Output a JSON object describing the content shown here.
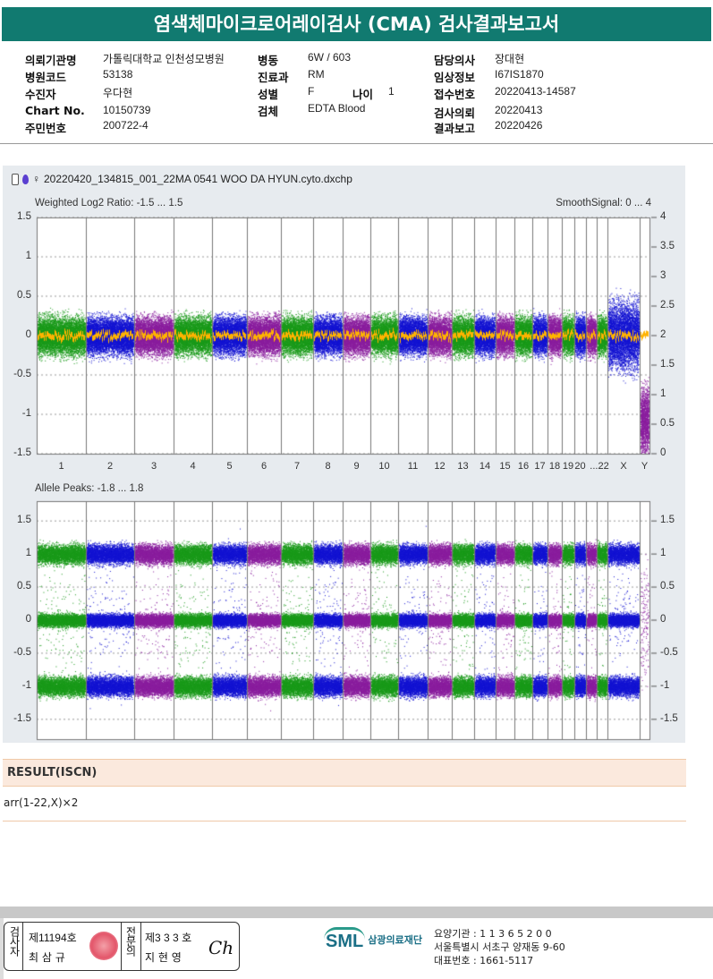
{
  "title": "염색체마이크로어레이검사 (CMA) 검사결과보고서",
  "info": [
    {
      "label": "의뢰기관명",
      "value": "가톨릭대학교 인천성모병원"
    },
    {
      "label": "병원코드",
      "value": "53138"
    },
    {
      "label": "수진자",
      "value": "우다현"
    },
    {
      "label": "Chart No.",
      "value": "10150739"
    },
    {
      "label": "주민번호",
      "value": "200722-4"
    },
    {
      "label": "병동",
      "value": "6W / 603"
    },
    {
      "label": "진료과",
      "value": "RM"
    },
    {
      "label": "성별",
      "value": "F"
    },
    {
      "label": "검체",
      "value": "EDTA Blood"
    },
    {
      "label": "나이",
      "value": "1"
    },
    {
      "label": "담당의사",
      "value": "장대현"
    },
    {
      "label": "임상정보",
      "value": "I67IS1870"
    },
    {
      "label": "접수번호",
      "value": "20220413-14587"
    },
    {
      "label": "검사의뢰",
      "value": "20220413"
    },
    {
      "label": "결과보고",
      "value": "20220426"
    }
  ],
  "plot": {
    "filename": "20220420_134815_001_22MA 0541 WOO DA HYUN.cyto.dxchp",
    "female_symbol": "♀"
  },
  "chart_data": [
    {
      "type": "scatter",
      "title": "Weighted Log2 Ratio: -1.5 ... 1.5",
      "right_title": "SmoothSignal: 0 ... 4",
      "ylim": [
        -1.5,
        1.5
      ],
      "y2lim": [
        0,
        4
      ],
      "yticks": [
        "1.5",
        "1",
        "0.5",
        "0",
        "-0.5",
        "-1",
        "-1.5"
      ],
      "y2ticks": [
        "4",
        "3.5",
        "3",
        "2.5",
        "2",
        "1.5",
        "1",
        "0.5",
        "0"
      ],
      "categories": [
        "1",
        "2",
        "3",
        "4",
        "5",
        "6",
        "7",
        "8",
        "9",
        "10",
        "11",
        "12",
        "13",
        "14",
        "15",
        "16",
        "17",
        "18",
        "19",
        "20",
        "...22",
        "X",
        "Y"
      ],
      "center_log2": 0,
      "smooth_signal": 2,
      "series_colors": [
        "#1a9a1a",
        "#1414d2",
        "#8a1e9e",
        "#ffb300"
      ]
    },
    {
      "type": "scatter",
      "title": "Allele Peaks: -1.8 ... 1.8",
      "ylim": [
        -1.8,
        1.8
      ],
      "yticks": [
        "1.5",
        "1",
        "0.5",
        "0",
        "-0.5",
        "-1",
        "-1.5"
      ],
      "y2ticks": [
        "1.5",
        "1",
        "0.5",
        "0",
        "-0.5",
        "-1",
        "-1.5"
      ],
      "bands": [
        1,
        0,
        -1
      ]
    }
  ],
  "result": {
    "header": "RESULT(ISCN)",
    "value": "arr(1-22,X)×2"
  },
  "footer": {
    "examiner_label": "검사자",
    "examiner_no": "제11194호",
    "examiner_name": "최 삼 규",
    "specialist_label": "전문의",
    "specialist_no": "제3 3 3 호",
    "specialist_name": "지 현 영",
    "logo": "SML",
    "org": "삼광의료재단",
    "line1": "요양기관 : 1 1 3 6 5 2 0 0",
    "line2": "서울특별시 서초구 양재동 9-60",
    "line3": "대표번호 : 1661-5117"
  }
}
